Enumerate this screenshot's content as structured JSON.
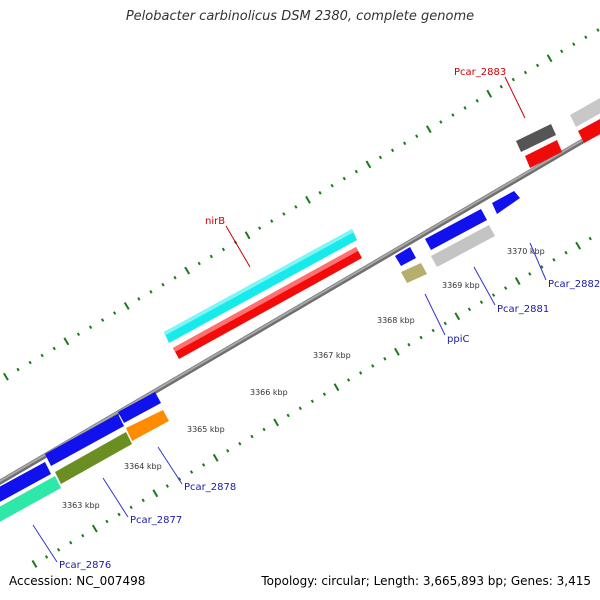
{
  "title": "Pelobacter carbinolicus DSM 2380, complete genome",
  "footer": {
    "accession": "Accession: NC_007498",
    "summary": "Topology: circular; Length: 3,665,893 bp; Genes: 3,415"
  },
  "colors": {
    "backbone": "#8c8c8c",
    "tick": "#1a7a1a",
    "label_red": "#cc0000",
    "label_blue": "#1a1aa8",
    "leader": "#3333cc",
    "leader_red": "#cc0000"
  },
  "scale_labels": [
    "3363 kbp",
    "3364 kbp",
    "3365 kbp",
    "3366 kbp",
    "3367 kbp",
    "3368 kbp",
    "3369 kbp",
    "3370 kbp"
  ],
  "genes": [
    {
      "label": "Pcar_2876",
      "color": "blue"
    },
    {
      "label": "Pcar_2877",
      "color": "blue"
    },
    {
      "label": "Pcar_2878",
      "color": "blue"
    },
    {
      "label": "nirB",
      "color": "red"
    },
    {
      "label": "ppiC",
      "color": "blue"
    },
    {
      "label": "Pcar_2881",
      "color": "blue"
    },
    {
      "label": "Pcar_2882",
      "color": "blue"
    },
    {
      "label": "Pcar_2883",
      "color": "red"
    }
  ]
}
